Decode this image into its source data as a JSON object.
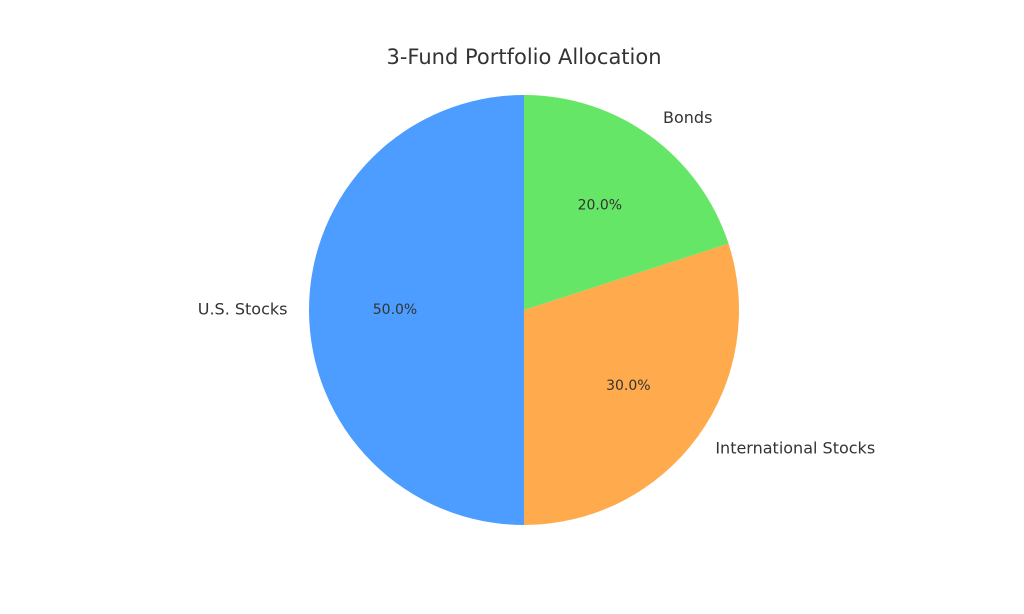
{
  "chart_data": {
    "type": "pie",
    "title": "3-Fund Portfolio Allocation",
    "categories": [
      "U.S. Stocks",
      "International Stocks",
      "Bonds"
    ],
    "values": [
      50,
      30,
      20
    ],
    "value_labels": [
      "50.0%",
      "30.0%",
      "20.0%"
    ],
    "colors": [
      "#4d9cff",
      "#ffaa4d",
      "#66e666"
    ]
  }
}
